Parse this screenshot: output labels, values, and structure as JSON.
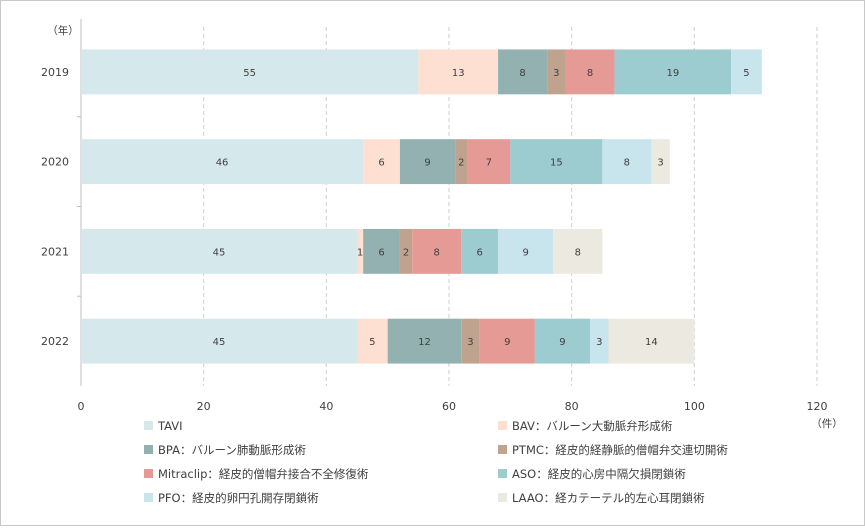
{
  "chart_data": {
    "type": "bar",
    "orientation": "horizontal",
    "stacked": true,
    "categories": [
      "2019",
      "2020",
      "2021",
      "2022"
    ],
    "y_unit_label": "（年）",
    "x_unit_label": "（件）",
    "xlim": [
      0,
      120
    ],
    "x_ticks": [
      0,
      20,
      40,
      60,
      80,
      100,
      120
    ],
    "grid": "vertical-dashed",
    "legend_position": "bottom",
    "series": [
      {
        "name": "TAVI",
        "color": "#d5e9ed",
        "values": [
          55,
          46,
          45,
          45
        ]
      },
      {
        "name": "BAV：バルーン大動脈弁形成術",
        "color": "#fde0d2",
        "values": [
          13,
          6,
          1,
          5
        ]
      },
      {
        "name": "BPA：バルーン肺動脈形成術",
        "color": "#93b1b1",
        "values": [
          8,
          9,
          6,
          12
        ]
      },
      {
        "name": "PTMC：経皮的経静脈的僧帽弁交連切開術",
        "color": "#c0a38f",
        "values": [
          3,
          2,
          2,
          3
        ]
      },
      {
        "name": "Mitraclip：経皮的僧帽弁接合不全修復術",
        "color": "#e59a96",
        "values": [
          8,
          7,
          8,
          9
        ]
      },
      {
        "name": "ASO：経皮的心房中隔欠損閉鎖術",
        "color": "#9ccbd0",
        "values": [
          19,
          15,
          6,
          9
        ]
      },
      {
        "name": "PFO：経皮的卵円孔開存閉鎖術",
        "color": "#c8e4ec",
        "values": [
          5,
          8,
          9,
          3
        ]
      },
      {
        "name": "LAAO：経カテーテル的左心耳閉鎖術",
        "color": "#ece9e0",
        "values": [
          null,
          3,
          8,
          14
        ]
      }
    ]
  }
}
